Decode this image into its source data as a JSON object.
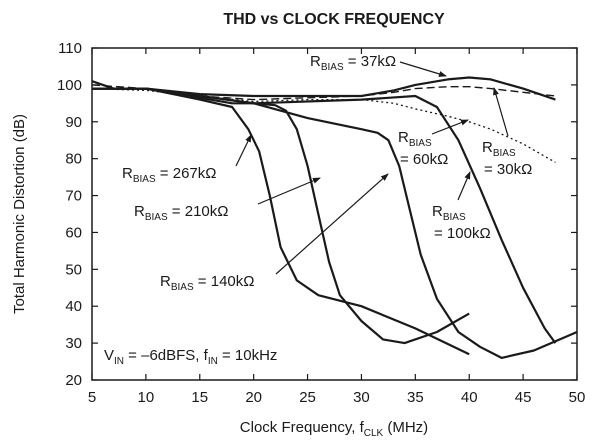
{
  "chart_data": {
    "type": "line",
    "title": "THD vs CLOCK FREQUENCY",
    "x_label": [
      "Clock Frequency, f",
      "CLK",
      " (MHz)"
    ],
    "y_label": "Total Harmonic Distortion (dB)",
    "xlim": [
      5,
      50
    ],
    "xticks": [
      5,
      10,
      15,
      20,
      25,
      30,
      35,
      40,
      45,
      50
    ],
    "ylim": [
      20,
      110
    ],
    "yticks": [
      20,
      30,
      40,
      50,
      60,
      70,
      80,
      90,
      100,
      110
    ],
    "grid": false,
    "color": "#1a1a1a",
    "series": [
      {
        "line_style": "solid",
        "x": [
          5,
          7,
          10,
          15,
          20,
          25,
          30,
          33,
          35,
          38,
          40,
          42,
          45,
          48
        ],
        "values": [
          101,
          99,
          99,
          97.5,
          97,
          97,
          97,
          98.5,
          100,
          101.5,
          102,
          101.5,
          99,
          96
        ]
      },
      {
        "line_style": "dashed",
        "x": [
          5,
          10,
          15,
          20,
          25,
          30,
          33,
          35,
          38,
          40,
          42,
          45,
          48
        ],
        "values": [
          100,
          99,
          97,
          96,
          96.5,
          97,
          98,
          99,
          99.5,
          99.5,
          99,
          98,
          97
        ]
      },
      {
        "line_style": "dotted",
        "x": [
          5,
          10,
          15,
          20,
          25,
          30,
          33,
          35,
          38,
          40,
          42,
          45,
          48
        ],
        "values": [
          99,
          98.5,
          97,
          95.5,
          96,
          96,
          95,
          93.5,
          91.5,
          90,
          88,
          84,
          79
        ]
      },
      {
        "line_style": "solid",
        "x": [
          5,
          10,
          15,
          18,
          19.5,
          20.5,
          21.5,
          22.5,
          24,
          26,
          30,
          35,
          40
        ],
        "values": [
          99,
          99,
          96,
          94,
          88,
          82,
          70,
          56,
          47,
          43,
          40,
          34,
          27
        ]
      },
      {
        "line_style": "solid",
        "x": [
          5,
          10,
          18,
          20,
          22,
          23,
          24,
          25,
          26,
          27,
          28,
          30,
          32,
          34,
          37,
          40
        ],
        "values": [
          99,
          99,
          95,
          95,
          94.5,
          93,
          88,
          78,
          65,
          52,
          43,
          36,
          31,
          30,
          33,
          38
        ]
      },
      {
        "line_style": "solid",
        "x": [
          5,
          10,
          20,
          25,
          30,
          31.5,
          32.5,
          33.5,
          34.5,
          35.5,
          37,
          39,
          41,
          43,
          46,
          50
        ],
        "values": [
          99,
          99,
          95,
          91,
          88,
          87,
          85,
          78,
          66,
          54,
          42,
          33,
          29,
          26,
          28,
          33
        ]
      },
      {
        "line_style": "solid",
        "x": [
          5,
          10,
          20,
          30,
          35,
          37,
          39,
          41,
          43,
          45,
          47,
          48
        ],
        "values": [
          99,
          99,
          95,
          96,
          97,
          94,
          85,
          72,
          58,
          45,
          34,
          30
        ]
      }
    ],
    "annotations": [
      {
        "parts": [
          "R",
          "BIAS",
          " = 37kΩ"
        ]
      },
      {
        "parts": [
          "R",
          "BIAS",
          "= 30kΩ"
        ]
      },
      {
        "parts": [
          "R",
          "BIAS",
          "= 60kΩ"
        ]
      },
      {
        "parts": [
          "R",
          "BIAS",
          " = 267kΩ"
        ]
      },
      {
        "parts": [
          "R",
          "BIAS",
          " = 210kΩ"
        ]
      },
      {
        "parts": [
          "R",
          "BIAS",
          " = 140kΩ"
        ]
      },
      {
        "parts": [
          "R",
          "BIAS",
          "= 100kΩ"
        ]
      }
    ],
    "note": [
      "V",
      "IN",
      " = –6dBFS, f",
      "IN",
      " = 10kHz"
    ]
  }
}
